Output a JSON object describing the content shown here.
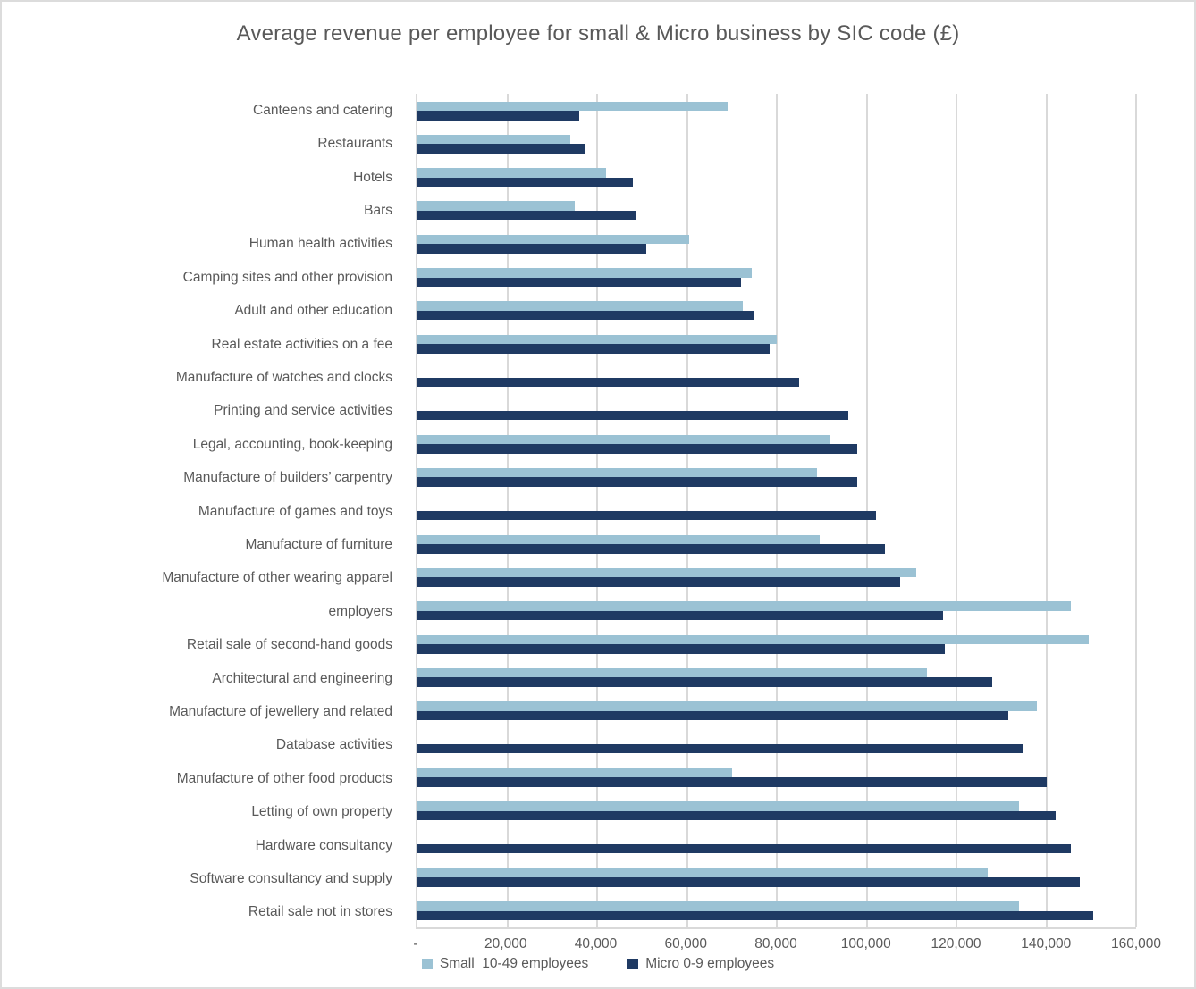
{
  "chart": {
    "title": "Average revenue per employee for small & Micro business by SIC code (£)"
  },
  "legend": {
    "small": "Small  10-49 employees",
    "micro": "Micro 0-9 employees"
  },
  "chart_data": {
    "type": "bar",
    "orientation": "horizontal",
    "title": "Average revenue per employee for small & Micro business by SIC code (£)",
    "xlabel": "",
    "ylabel": "",
    "xlim": [
      0,
      160000
    ],
    "grid": "vertical",
    "legend_position": "bottom",
    "tick_values": [
      0,
      20000,
      40000,
      60000,
      80000,
      100000,
      120000,
      140000,
      160000
    ],
    "tick_labels": [
      "-",
      "20,000",
      "40,000",
      "60,000",
      "80,000",
      "100,000",
      "120,000",
      "140,000",
      "160,000"
    ],
    "categories": [
      "Canteens and catering",
      "Restaurants",
      "Hotels",
      "Bars",
      "Human health activities",
      "Camping sites and other provision",
      "Adult and other education",
      "Real estate activities on a fee",
      "Manufacture of watches and clocks",
      "Printing and service activities",
      "Legal, accounting, book-keeping",
      "Manufacture of builders’ carpentry",
      "Manufacture of games and toys",
      "Manufacture of furniture",
      "Manufacture of other wearing apparel",
      "employers",
      "Retail sale of second-hand goods",
      "Architectural and engineering",
      "Manufacture of jewellery and related",
      "Database activities",
      "Manufacture of other food products",
      "Letting of own property",
      "Hardware consultancy",
      "Software consultancy and supply",
      "Retail sale not in stores"
    ],
    "series": [
      {
        "name": "Small  10-49 employees",
        "key": "small",
        "color": "#9BC2D4",
        "values": [
          69000,
          34000,
          42000,
          35000,
          60500,
          74500,
          72500,
          80000,
          0,
          0,
          92000,
          89000,
          0,
          89500,
          111000,
          145500,
          149500,
          113500,
          138000,
          0,
          70000,
          134000,
          0,
          127000,
          134000
        ]
      },
      {
        "name": "Micro 0-9 employees",
        "key": "micro",
        "color": "#1F3A63",
        "values": [
          36000,
          37500,
          48000,
          48500,
          51000,
          72000,
          75000,
          78500,
          85000,
          96000,
          98000,
          98000,
          102000,
          104000,
          107500,
          117000,
          117500,
          128000,
          131500,
          135000,
          140000,
          142000,
          145500,
          147500,
          150500
        ]
      }
    ],
    "colors": {
      "text": "#595959",
      "gridline": "#D9D9D9",
      "small_series": "#9BC2D4",
      "micro_series": "#1F3A63"
    }
  }
}
